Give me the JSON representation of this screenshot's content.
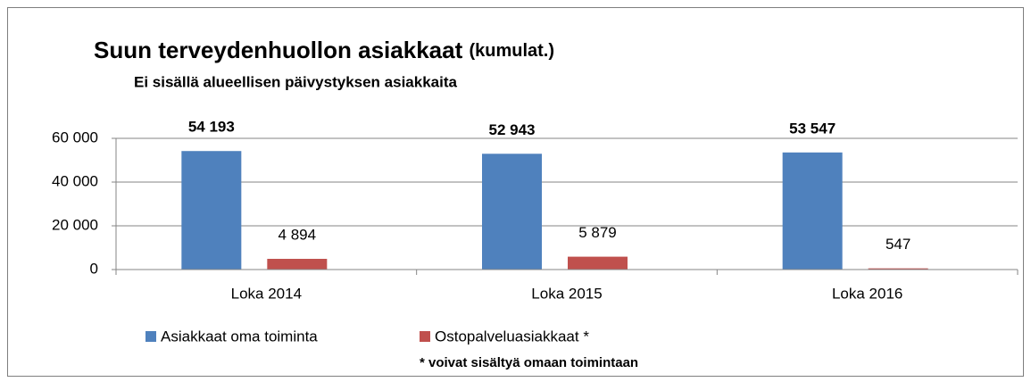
{
  "chart_data": {
    "type": "bar",
    "title": "Suun terveydenhuollon asiakkaat",
    "title_note": "(kumulat.)",
    "subtitle": "Ei sisällä alueellisen päivystyksen asiakkaita",
    "categories": [
      "Loka 2014",
      "Loka 2015",
      "Loka 2016"
    ],
    "series": [
      {
        "name": "Asiakkaat oma toiminta",
        "color": "#4f81bd",
        "values": [
          54193,
          52943,
          53547
        ],
        "value_labels": [
          "54 193",
          "52 943",
          "53 547"
        ],
        "label_bold": true
      },
      {
        "name": "Ostopalveluasiakkaat *",
        "color": "#c0504d",
        "values": [
          4894,
          5879,
          547
        ],
        "value_labels": [
          "4 894",
          "5 879",
          "547"
        ],
        "label_bold": false
      }
    ],
    "ylim": [
      0,
      60000
    ],
    "yticks": [
      0,
      {
        "value": 20000,
        "label": "20 000"
      },
      {
        "value": 40000,
        "label": "40 000"
      },
      {
        "value": 60000,
        "label": "60 000"
      }
    ],
    "grid": true,
    "legend": "bottom",
    "annotation": "* voivat  sisältyä omaan toimintaan"
  }
}
